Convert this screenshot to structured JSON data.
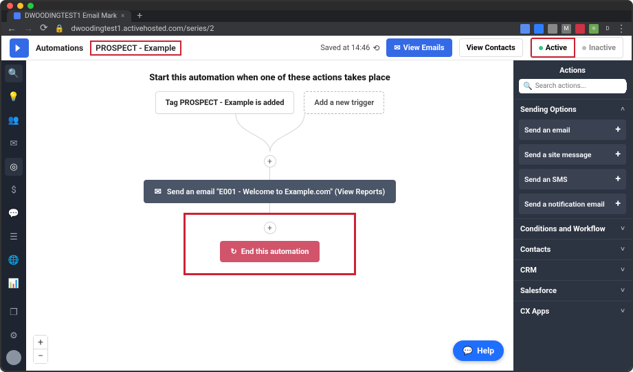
{
  "browser": {
    "tab_title": "DWOODINGTEST1 Email Mark",
    "url": "dwoodingtest1.activehosted.com/series/2",
    "ext_colors": [
      "#5b8def",
      "#2e7dff",
      "#888888",
      "#777777",
      "#cc3344",
      "#6aa84f",
      "#888888"
    ]
  },
  "header": {
    "breadcrumb_root": "Automations",
    "automation_name": "PROSPECT - Example",
    "saved_text": "Saved at 14:46",
    "view_emails": "View Emails",
    "view_contacts": "View Contacts",
    "active_label": "Active",
    "inactive_label": "Inactive"
  },
  "canvas": {
    "start_title": "Start this automation when one of these actions takes place",
    "trigger_chip": "Tag PROSPECT - Example is added",
    "add_trigger": "Add a new trigger",
    "action_label": "Send an email \"E001 - Welcome to Example.com\" (View Reports)",
    "end_label": "End this automation",
    "colors": {
      "action_bg": "#4a5568",
      "end_bg": "#d1546b",
      "highlight_border": "#c22338",
      "connector": "#cfd4dc"
    }
  },
  "panel": {
    "title": "Actions",
    "search_placeholder": "Search actions...",
    "sending_options_label": "Sending Options",
    "sending_items": [
      {
        "label": "Send an email"
      },
      {
        "label": "Send a site message"
      },
      {
        "label": "Send an SMS"
      },
      {
        "label": "Send a notification email"
      }
    ],
    "sections": [
      {
        "label": "Conditions and Workflow"
      },
      {
        "label": "Contacts"
      },
      {
        "label": "CRM"
      },
      {
        "label": "Salesforce"
      },
      {
        "label": "CX Apps"
      }
    ]
  },
  "help_label": "Help",
  "leftnav_icons": [
    "search",
    "lightbulb",
    "contacts",
    "mail",
    "target",
    "dollar",
    "chat",
    "list",
    "globe",
    "report"
  ],
  "leftnav_bottom": [
    "copy",
    "gear"
  ]
}
